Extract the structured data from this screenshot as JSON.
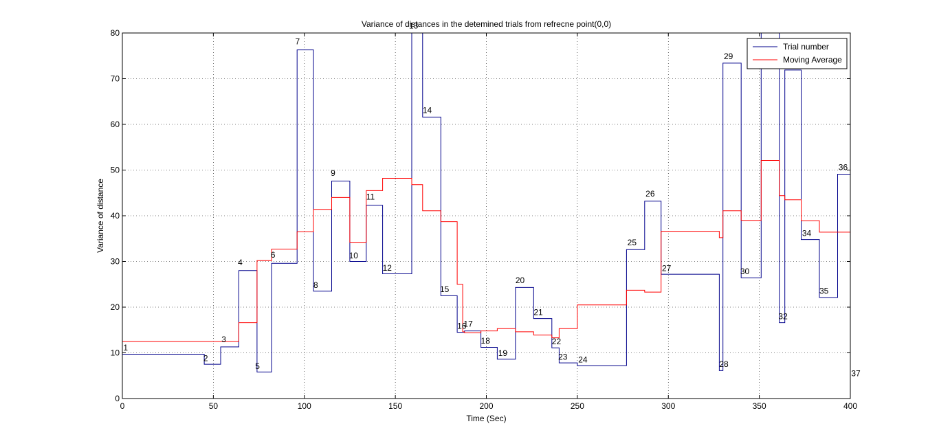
{
  "chart_data": {
    "type": "line",
    "step": true,
    "title": "Variance of distances in the detemined trials from refrecne point(0,0)",
    "xlabel": "Time (Sec)",
    "ylabel": "Variance of  distance",
    "xlim": [
      0,
      400
    ],
    "ylim": [
      0,
      80
    ],
    "xticks": [
      0,
      50,
      100,
      150,
      200,
      250,
      300,
      350,
      400
    ],
    "yticks": [
      0,
      10,
      20,
      30,
      40,
      50,
      60,
      70,
      80
    ],
    "grid": true,
    "legend_position": "top-right",
    "series": [
      {
        "name": "Trial number",
        "color": "#00008b",
        "points": [
          [
            0,
            9.7
          ],
          [
            45,
            9.7
          ],
          [
            45,
            7.5
          ],
          [
            54,
            7.5
          ],
          [
            54,
            11.3
          ],
          [
            64,
            11.3
          ],
          [
            64,
            28
          ],
          [
            74,
            28
          ],
          [
            74,
            5.8
          ],
          [
            82,
            5.8
          ],
          [
            82,
            29.6
          ],
          [
            96,
            29.6
          ],
          [
            96,
            76.3
          ],
          [
            105,
            76.3
          ],
          [
            105,
            23.5
          ],
          [
            115,
            23.5
          ],
          [
            115,
            47.6
          ],
          [
            125,
            47.6
          ],
          [
            125,
            30
          ],
          [
            134,
            30
          ],
          [
            134,
            42.3
          ],
          [
            143,
            42.3
          ],
          [
            143,
            27.3
          ],
          [
            159,
            27.3
          ],
          [
            159,
            82
          ],
          [
            165,
            82
          ],
          [
            165,
            61.6
          ],
          [
            175,
            61.6
          ],
          [
            175,
            22.5
          ],
          [
            184,
            22.5
          ],
          [
            184,
            14.5
          ],
          [
            188,
            14.5
          ],
          [
            188,
            14.8
          ],
          [
            197,
            14.8
          ],
          [
            197,
            11.2
          ],
          [
            206,
            11.2
          ],
          [
            206,
            8.6
          ],
          [
            216,
            8.6
          ],
          [
            216,
            24.3
          ],
          [
            226,
            24.3
          ],
          [
            226,
            17.5
          ],
          [
            236,
            17.5
          ],
          [
            236,
            11.1
          ],
          [
            240,
            11.1
          ],
          [
            240,
            7.8
          ],
          [
            250,
            7.8
          ],
          [
            250,
            7.2
          ],
          [
            277,
            7.2
          ],
          [
            277,
            32.6
          ],
          [
            287,
            32.6
          ],
          [
            287,
            43.2
          ],
          [
            296,
            43.2
          ],
          [
            296,
            27.2
          ],
          [
            328,
            27.2
          ],
          [
            328,
            6.1
          ],
          [
            330,
            6.1
          ],
          [
            330,
            73.4
          ],
          [
            340,
            73.4
          ],
          [
            340,
            26.4
          ],
          [
            351,
            26.4
          ],
          [
            351,
            82
          ],
          [
            361,
            82
          ],
          [
            361,
            16.6
          ],
          [
            364,
            16.6
          ],
          [
            364,
            71.9
          ],
          [
            373,
            71.9
          ],
          [
            373,
            34.8
          ],
          [
            383,
            34.8
          ],
          [
            383,
            22.1
          ],
          [
            393,
            22.1
          ],
          [
            393,
            49.1
          ],
          [
            400,
            49.1
          ],
          [
            400,
            5
          ]
        ]
      },
      {
        "name": "Moving Average",
        "color": "#ff0000",
        "points": [
          [
            0,
            12.5
          ],
          [
            64,
            12.5
          ],
          [
            64,
            16.6
          ],
          [
            74,
            16.6
          ],
          [
            74,
            30.2
          ],
          [
            82,
            30.2
          ],
          [
            82,
            32.7
          ],
          [
            96,
            32.7
          ],
          [
            96,
            36.5
          ],
          [
            105,
            36.5
          ],
          [
            105,
            41.4
          ],
          [
            115,
            41.4
          ],
          [
            115,
            44
          ],
          [
            125,
            44
          ],
          [
            125,
            34.2
          ],
          [
            134,
            34.2
          ],
          [
            134,
            45.5
          ],
          [
            143,
            45.5
          ],
          [
            143,
            48.2
          ],
          [
            159,
            48.2
          ],
          [
            159,
            46.8
          ],
          [
            165,
            46.8
          ],
          [
            165,
            41.1
          ],
          [
            175,
            41.1
          ],
          [
            175,
            38.7
          ],
          [
            184,
            38.7
          ],
          [
            184,
            25
          ],
          [
            187,
            25
          ],
          [
            187,
            14.6
          ],
          [
            188,
            14.6
          ],
          [
            188,
            14.4
          ],
          [
            197,
            14.4
          ],
          [
            197,
            14.8
          ],
          [
            206,
            14.8
          ],
          [
            206,
            15.3
          ],
          [
            216,
            15.3
          ],
          [
            216,
            14.6
          ],
          [
            226,
            14.6
          ],
          [
            226,
            13.9
          ],
          [
            236,
            13.9
          ],
          [
            236,
            13.3
          ],
          [
            240,
            13.3
          ],
          [
            240,
            15.3
          ],
          [
            250,
            15.3
          ],
          [
            250,
            20.5
          ],
          [
            277,
            20.5
          ],
          [
            277,
            23.7
          ],
          [
            287,
            23.7
          ],
          [
            287,
            23.3
          ],
          [
            296,
            23.3
          ],
          [
            296,
            36.6
          ],
          [
            328,
            36.6
          ],
          [
            328,
            35.2
          ],
          [
            330,
            35.2
          ],
          [
            330,
            41.1
          ],
          [
            340,
            41.1
          ],
          [
            340,
            39
          ],
          [
            351,
            39
          ],
          [
            351,
            52.1
          ],
          [
            361,
            52.1
          ],
          [
            361,
            44.4
          ],
          [
            364,
            44.4
          ],
          [
            364,
            43.5
          ],
          [
            373,
            43.5
          ],
          [
            373,
            38.9
          ],
          [
            383,
            38.9
          ],
          [
            383,
            36.4
          ],
          [
            400,
            36.4
          ]
        ]
      }
    ],
    "annotations": [
      {
        "label": "1",
        "x": 0.5,
        "y": 10.5
      },
      {
        "label": "2",
        "x": 44.5,
        "y": 8.2
      },
      {
        "label": "3",
        "x": 54.5,
        "y": 12.3
      },
      {
        "label": "4",
        "x": 63.5,
        "y": 29.2
      },
      {
        "label": "5",
        "x": 73,
        "y": 6.5
      },
      {
        "label": "6",
        "x": 81.5,
        "y": 30.8
      },
      {
        "label": "7",
        "x": 95,
        "y": 77.5
      },
      {
        "label": "8",
        "x": 105,
        "y": 24.2
      },
      {
        "label": "9",
        "x": 114.5,
        "y": 48.7
      },
      {
        "label": "10",
        "x": 124.5,
        "y": 30.7
      },
      {
        "label": "11",
        "x": 134,
        "y": 43.5
      },
      {
        "label": "12",
        "x": 143,
        "y": 28
      },
      {
        "label": "13",
        "x": 157.5,
        "y": 81
      },
      {
        "label": "14",
        "x": 165,
        "y": 62.5
      },
      {
        "label": "15",
        "x": 174.5,
        "y": 23.3
      },
      {
        "label": "16",
        "x": 184,
        "y": 15.3
      },
      {
        "label": "17",
        "x": 187.5,
        "y": 15.7
      },
      {
        "label": "18",
        "x": 197,
        "y": 12
      },
      {
        "label": "19",
        "x": 206.5,
        "y": 9.3
      },
      {
        "label": "20",
        "x": 216,
        "y": 25.3
      },
      {
        "label": "21",
        "x": 226,
        "y": 18.3
      },
      {
        "label": "22",
        "x": 236,
        "y": 11.9
      },
      {
        "label": "23",
        "x": 239.5,
        "y": 8.5
      },
      {
        "label": "24",
        "x": 250.5,
        "y": 7.9
      },
      {
        "label": "25",
        "x": 277.5,
        "y": 33.5
      },
      {
        "label": "26",
        "x": 287.5,
        "y": 44.2
      },
      {
        "label": "27",
        "x": 296.5,
        "y": 27.9
      },
      {
        "label": "28",
        "x": 328,
        "y": 6.9
      },
      {
        "label": "29",
        "x": 330.5,
        "y": 74.3
      },
      {
        "label": "30",
        "x": 339.5,
        "y": 27.2
      },
      {
        "label": "32",
        "x": 360.5,
        "y": 17.4
      },
      {
        "label": "34",
        "x": 373.5,
        "y": 35.6
      },
      {
        "label": "35",
        "x": 383,
        "y": 22.9
      },
      {
        "label": "36",
        "x": 393.5,
        "y": 50
      },
      {
        "label": "37",
        "x": 400.5,
        "y": 4.9
      }
    ]
  }
}
